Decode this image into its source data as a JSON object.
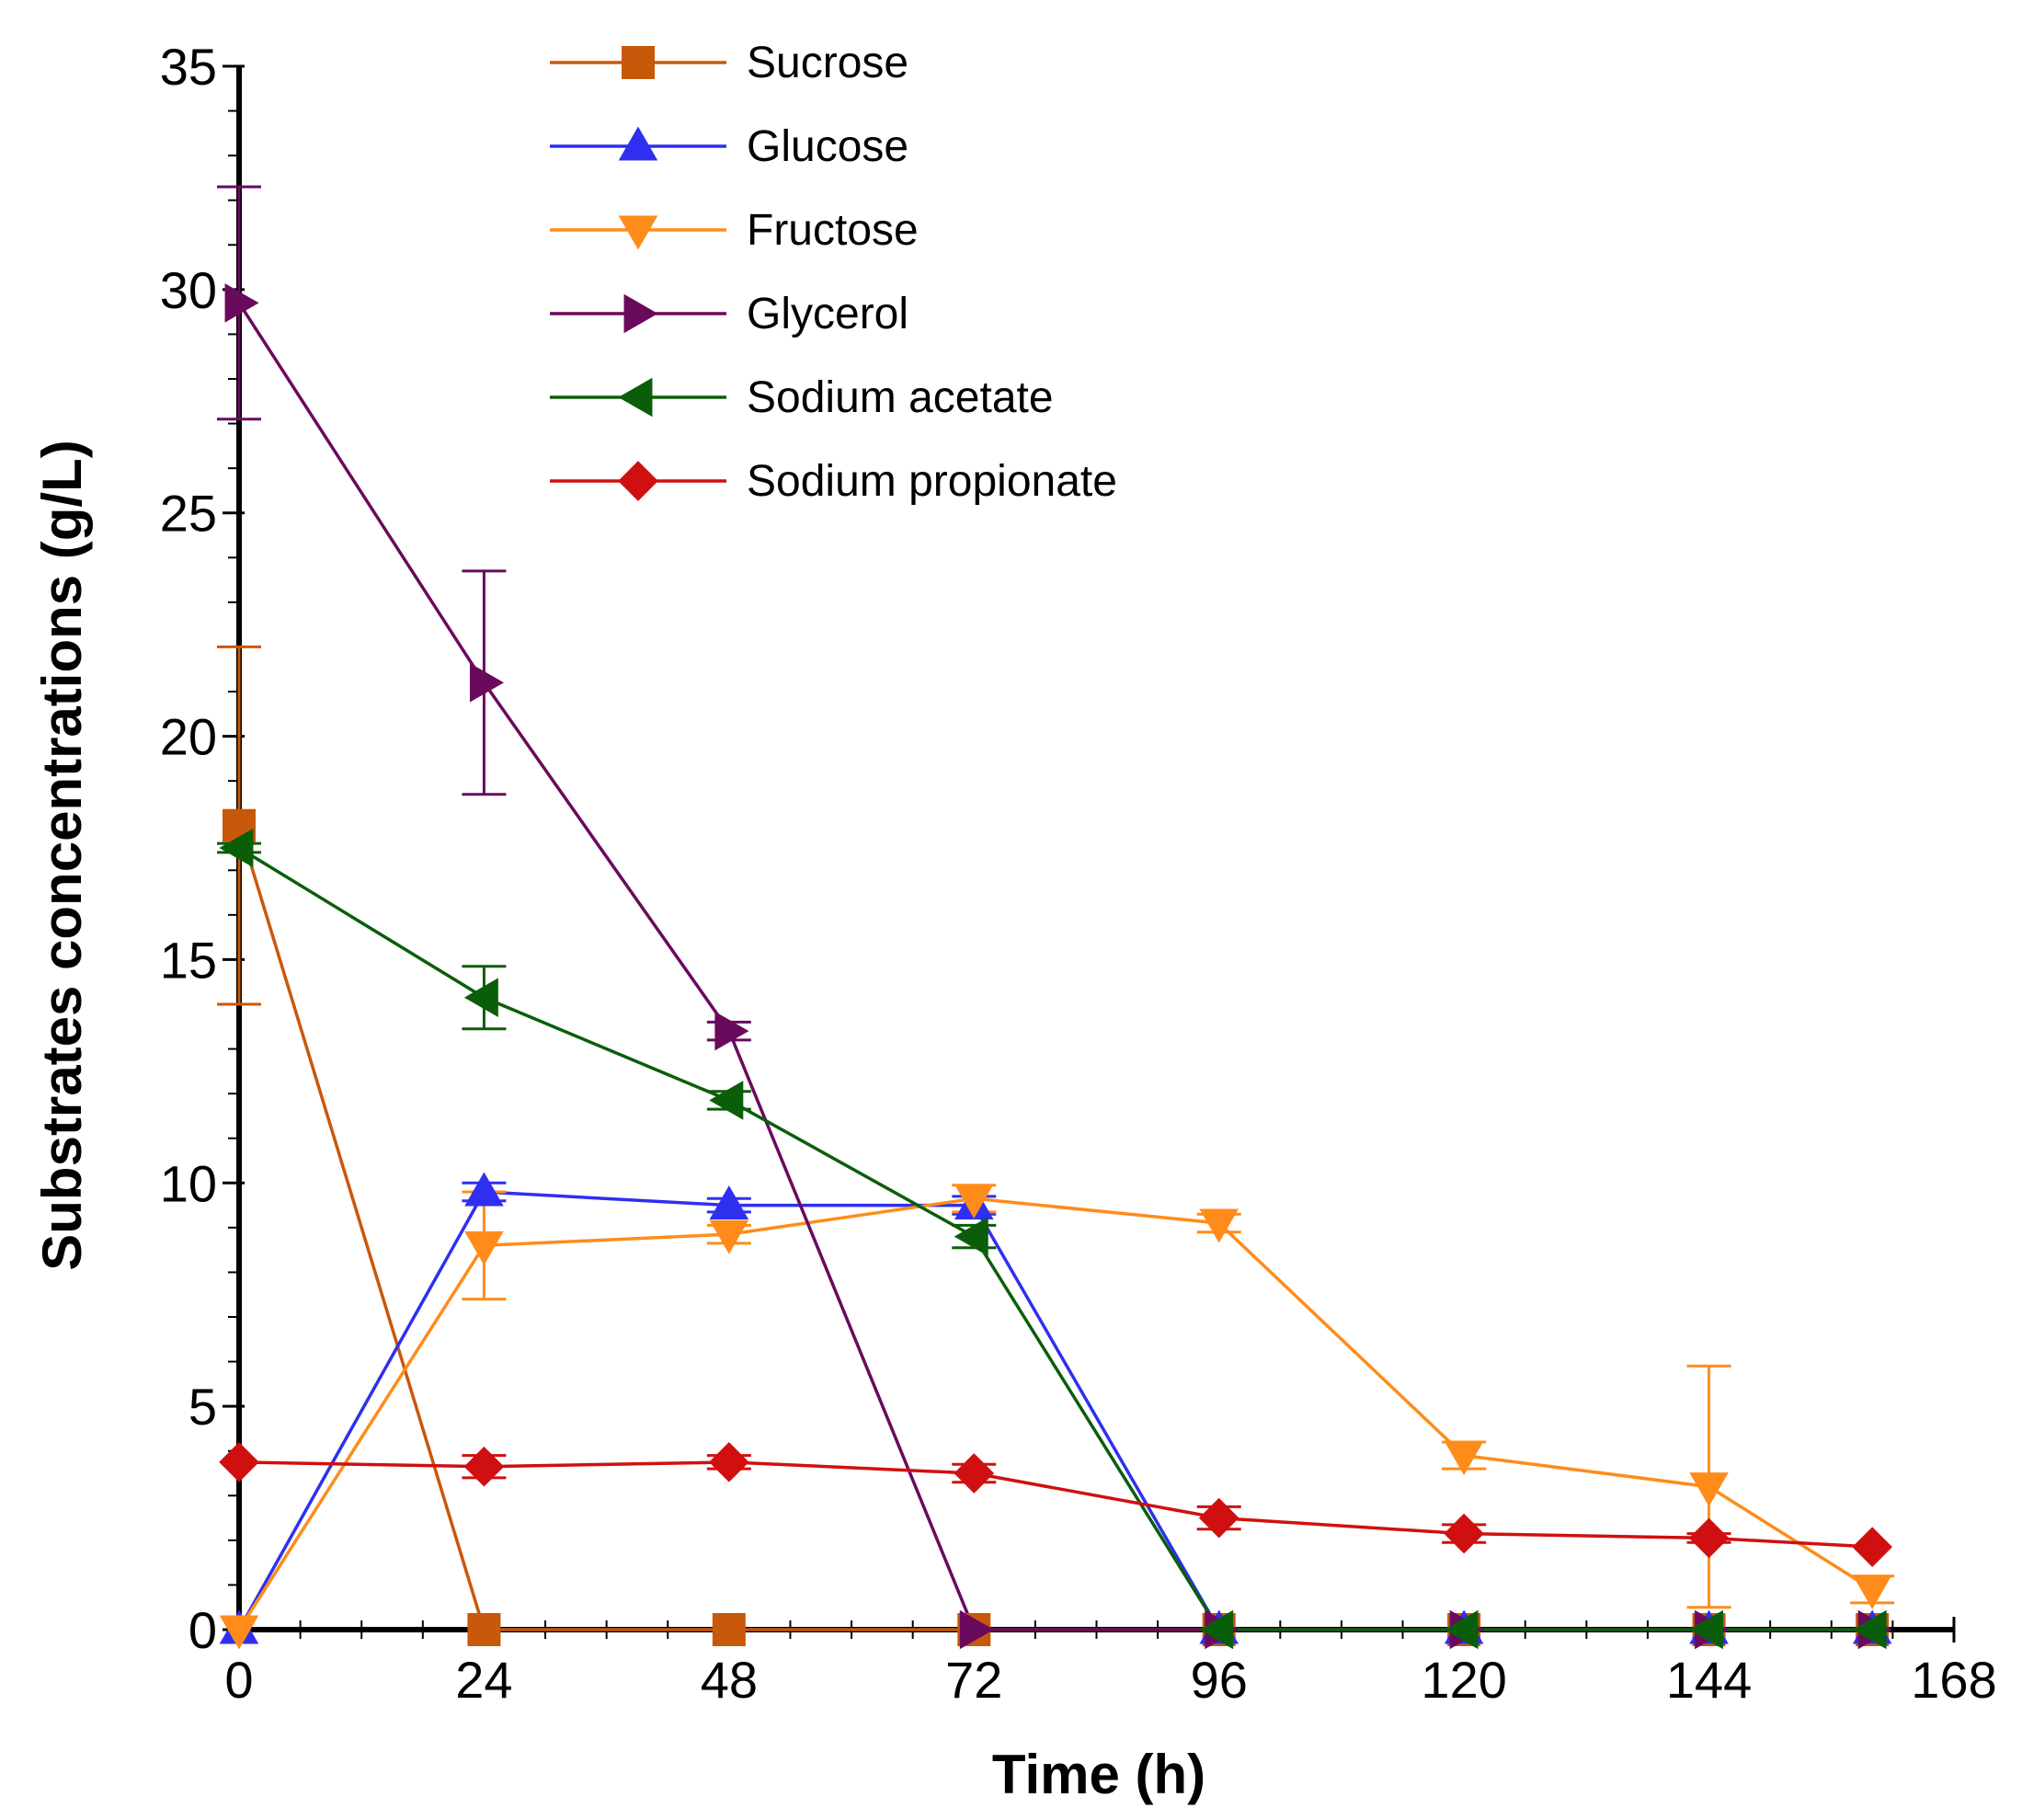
{
  "chart_data": {
    "type": "line",
    "title": "",
    "xlabel": "Time (h)",
    "ylabel": "Substrates concentrations (g/L)",
    "xlim": [
      0,
      168
    ],
    "ylim": [
      0,
      35
    ],
    "xticks": [
      0,
      24,
      48,
      72,
      96,
      120,
      144,
      168
    ],
    "yticks": [
      0,
      5,
      10,
      15,
      20,
      25,
      30,
      35
    ],
    "x_tick_labels": [
      "0",
      "24",
      "48",
      "72",
      "96",
      "120",
      "144",
      "168"
    ],
    "y_tick_labels": [
      "0",
      "5",
      "10",
      "15",
      "20",
      "25",
      "30",
      "35"
    ],
    "grid": false,
    "legend_position": "top-center",
    "series": [
      {
        "name": "Sucrose",
        "color": "#c8580a",
        "marker": "square",
        "x": [
          0,
          24,
          48,
          72,
          96,
          120,
          144,
          160
        ],
        "y": [
          18.0,
          0,
          0,
          0,
          0,
          0,
          0,
          0
        ],
        "err": [
          4.0,
          0,
          0,
          0,
          0,
          0,
          0,
          0
        ]
      },
      {
        "name": "Glucose",
        "color": "#2f2ff0",
        "marker": "triangle-up",
        "x": [
          0,
          24,
          48,
          72,
          96,
          120,
          144,
          160
        ],
        "y": [
          0,
          9.8,
          9.5,
          9.5,
          0,
          0,
          0,
          0
        ],
        "err": [
          0,
          0.2,
          0.15,
          0.2,
          0,
          0,
          0,
          0
        ]
      },
      {
        "name": "Fructose",
        "color": "#ff8c1a",
        "marker": "triangle-down",
        "x": [
          0,
          24,
          48,
          72,
          96,
          120,
          144,
          160
        ],
        "y": [
          0,
          8.6,
          8.85,
          9.65,
          9.1,
          3.9,
          3.2,
          0.9
        ],
        "err": [
          0,
          1.2,
          0.2,
          0.3,
          0.2,
          0.3,
          2.7,
          0.3
        ]
      },
      {
        "name": "Glycerol",
        "color": "#6a0a5c",
        "marker": "triangle-right",
        "x": [
          0,
          24,
          48,
          72,
          96,
          120,
          144,
          160
        ],
        "y": [
          29.7,
          21.2,
          13.4,
          0,
          0,
          0,
          0,
          0
        ],
        "err": [
          2.6,
          2.5,
          0.2,
          0,
          0,
          0,
          0,
          0
        ]
      },
      {
        "name": "Sodium acetate",
        "color": "#0a5e0a",
        "marker": "triangle-left",
        "x": [
          0,
          24,
          48,
          72,
          96,
          120,
          144,
          160
        ],
        "y": [
          17.5,
          14.15,
          11.85,
          8.8,
          0,
          0,
          0,
          0
        ],
        "err": [
          0.1,
          0.7,
          0.2,
          0.25,
          0,
          0,
          0,
          0
        ]
      },
      {
        "name": "Sodium propionate",
        "color": "#d01010",
        "marker": "diamond",
        "x": [
          0,
          24,
          48,
          72,
          96,
          120,
          144,
          160
        ],
        "y": [
          3.75,
          3.65,
          3.75,
          3.5,
          2.5,
          2.15,
          2.05,
          1.85
        ],
        "err": [
          0,
          0.25,
          0.15,
          0.2,
          0.25,
          0.2,
          0.1,
          0
        ]
      }
    ]
  }
}
